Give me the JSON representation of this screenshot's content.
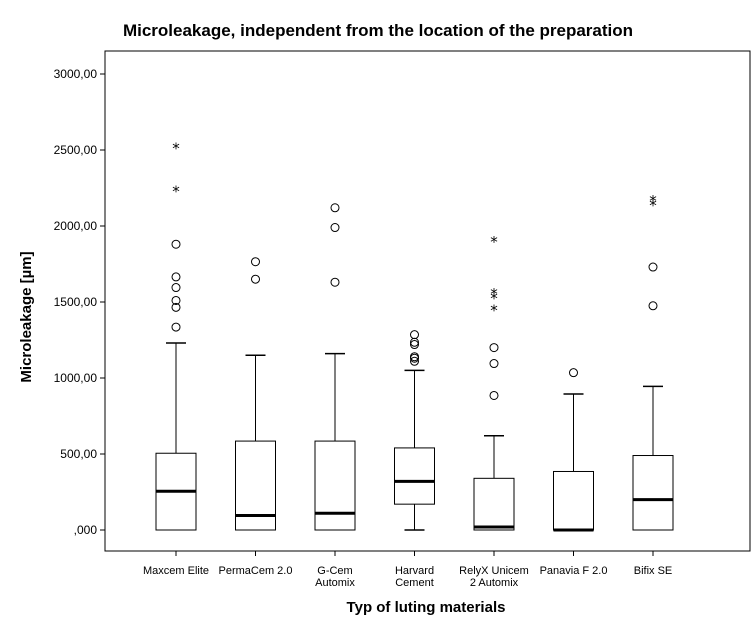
{
  "chart_data": {
    "type": "boxplot",
    "title": "Microleakage, independent from the location of the preparation",
    "xlabel": "Typ of luting materials",
    "ylabel": "Microleakage [µm]",
    "ylim": [
      0,
      3000
    ],
    "yticks": [
      {
        "value": 0,
        "label": ",000"
      },
      {
        "value": 500,
        "label": "500,00"
      },
      {
        "value": 1000,
        "label": "1000,00"
      },
      {
        "value": 1500,
        "label": "1500,00"
      },
      {
        "value": 2000,
        "label": "2000,00"
      },
      {
        "value": 2500,
        "label": "2500,00"
      },
      {
        "value": 3000,
        "label": "3000,00"
      }
    ],
    "grid": false,
    "categories": [
      {
        "name": "Maxcem Elite",
        "lines": [
          "Maxcem Elite"
        ],
        "min": 0,
        "q1": 0,
        "median": 255,
        "q3": 505,
        "max": 1230,
        "outliers": [
          1335,
          1465,
          1510,
          1595,
          1665,
          1880
        ],
        "extremes": [
          2235,
          2515
        ]
      },
      {
        "name": "PermaCem 2.0",
        "lines": [
          "PermaCem 2.0"
        ],
        "min": 0,
        "q1": 0,
        "median": 95,
        "q3": 585,
        "max": 1150,
        "outliers": [
          1650,
          1765
        ],
        "extremes": []
      },
      {
        "name": "G-Cem Automix",
        "lines": [
          "G-Cem",
          "Automix"
        ],
        "min": 0,
        "q1": 0,
        "median": 110,
        "q3": 585,
        "max": 1160,
        "outliers": [
          1630,
          1990,
          2120
        ],
        "extremes": []
      },
      {
        "name": "Harvard Cement",
        "lines": [
          "Harvard",
          "Cement"
        ],
        "min": 0,
        "q1": 170,
        "median": 320,
        "q3": 540,
        "max": 1050,
        "outliers": [
          1110,
          1130,
          1140,
          1220,
          1235,
          1285
        ],
        "extremes": []
      },
      {
        "name": "RelyX Unicem 2 Automix",
        "lines": [
          "RelyX Unicem",
          "2 Automix"
        ],
        "min": 0,
        "q1": 0,
        "median": 20,
        "q3": 340,
        "max": 620,
        "outliers": [
          885,
          1095,
          1200
        ],
        "extremes": [
          1450,
          1530,
          1560,
          1900
        ]
      },
      {
        "name": "Panavia F 2.0",
        "lines": [
          "Panavia F 2.0"
        ],
        "min": 0,
        "q1": 0,
        "median": 0,
        "q3": 385,
        "max": 895,
        "outliers": [
          1035
        ],
        "extremes": []
      },
      {
        "name": "Bifix SE",
        "lines": [
          "Bifix SE"
        ],
        "min": 0,
        "q1": 0,
        "median": 200,
        "q3": 490,
        "max": 945,
        "outliers": [
          1475,
          1730
        ],
        "extremes": [
          2140,
          2170
        ]
      }
    ]
  }
}
